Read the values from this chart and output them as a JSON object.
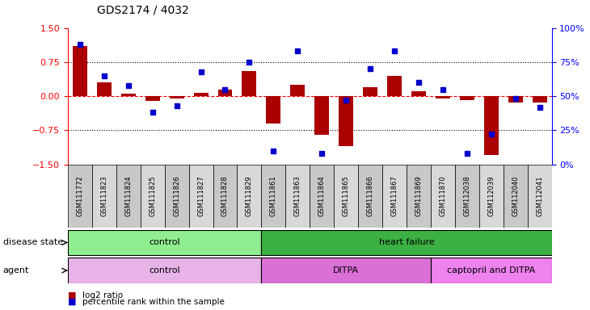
{
  "title": "GDS2174 / 4032",
  "samples": [
    "GSM111772",
    "GSM111823",
    "GSM111824",
    "GSM111825",
    "GSM111826",
    "GSM111827",
    "GSM111828",
    "GSM111829",
    "GSM111861",
    "GSM111863",
    "GSM111864",
    "GSM111865",
    "GSM111866",
    "GSM111867",
    "GSM111869",
    "GSM111870",
    "GSM112038",
    "GSM112039",
    "GSM112040",
    "GSM112041"
  ],
  "log2_ratio": [
    1.1,
    0.3,
    0.05,
    -0.1,
    -0.05,
    0.08,
    0.15,
    0.55,
    -0.6,
    0.25,
    -0.85,
    -1.1,
    0.2,
    0.45,
    0.1,
    -0.05,
    -0.08,
    -1.3,
    -0.15,
    -0.15
  ],
  "pct_rank": [
    88,
    65,
    58,
    38,
    43,
    68,
    55,
    75,
    10,
    83,
    8,
    47,
    70,
    83,
    60,
    55,
    8,
    22,
    48,
    42
  ],
  "disease_state_groups": [
    {
      "label": "control",
      "start": 0,
      "end": 8,
      "color": "#90EE90"
    },
    {
      "label": "heart failure",
      "start": 8,
      "end": 20,
      "color": "#3CB043"
    }
  ],
  "agent_groups": [
    {
      "label": "control",
      "start": 0,
      "end": 8,
      "color": "#E8B4E8"
    },
    {
      "label": "DITPA",
      "start": 8,
      "end": 15,
      "color": "#DA70D6"
    },
    {
      "label": "captopril and DITPA",
      "start": 15,
      "end": 20,
      "color": "#EE82EE"
    }
  ],
  "bar_color": "#AA0000",
  "dot_color": "#0000CC",
  "ylim_left": [
    -1.5,
    1.5
  ],
  "ylim_right": [
    0,
    100
  ],
  "yticks_left": [
    -1.5,
    -0.75,
    0,
    0.75,
    1.5
  ],
  "yticks_right": [
    0,
    25,
    50,
    75,
    100
  ],
  "hlines_dotted": [
    0.75,
    -0.75
  ],
  "hline_zero_color": "red"
}
